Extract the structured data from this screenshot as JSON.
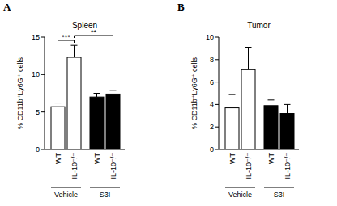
{
  "chart_data": [
    {
      "type": "bar",
      "panel_label": "A",
      "title": "Spleen",
      "y_label": "% CD11b⁺Ly6G⁺ cells",
      "categories": [
        "WT",
        "IL-10⁻/⁻",
        "WT",
        "IL-10⁻/⁻"
      ],
      "group_labels": [
        "Vehicle",
        "Vehicle",
        "S3I",
        "S3I"
      ],
      "values": [
        5.7,
        12.3,
        7.0,
        7.4
      ],
      "errors": [
        0.5,
        1.6,
        0.5,
        0.5
      ],
      "colors": [
        "#ffffff",
        "#ffffff",
        "#000000",
        "#000000"
      ],
      "ylim": [
        0,
        15
      ],
      "yticks": [
        0,
        5,
        10,
        15
      ],
      "annotations": [
        {
          "text": "***",
          "between": [
            0,
            1
          ]
        },
        {
          "text": "**",
          "between": [
            1,
            3
          ]
        }
      ]
    },
    {
      "type": "bar",
      "panel_label": "B",
      "title": "Tumor",
      "y_label": "% CD11b⁺Ly6G⁺ cells",
      "categories": [
        "WT",
        "IL-10⁻/⁻",
        "WT",
        "IL-10⁻/⁻"
      ],
      "group_labels": [
        "Vehicle",
        "Vehicle",
        "S3I",
        "S3I"
      ],
      "values": [
        3.7,
        7.1,
        3.9,
        3.2
      ],
      "errors": [
        1.2,
        2.0,
        0.5,
        0.8
      ],
      "colors": [
        "#ffffff",
        "#ffffff",
        "#000000",
        "#000000"
      ],
      "ylim": [
        0,
        10
      ],
      "yticks": [
        0,
        2,
        4,
        6,
        8,
        10
      ]
    }
  ]
}
